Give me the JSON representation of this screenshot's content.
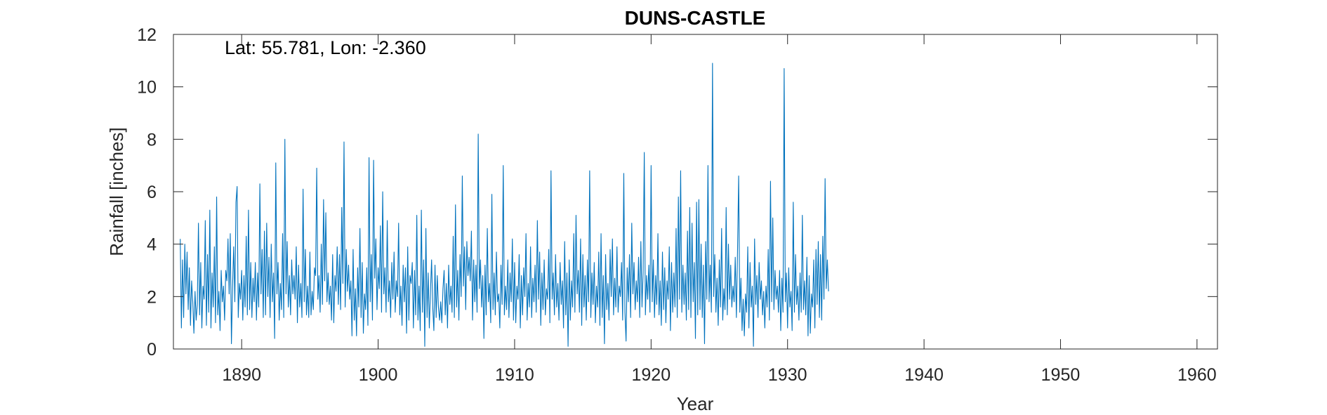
{
  "chart_data": {
    "type": "line",
    "title": "DUNS-CASTLE",
    "annotation": "Lat: 55.781, Lon: -2.360",
    "xlabel": "Year",
    "ylabel": "Rainfall [inches]",
    "xlim": [
      1885,
      1961.5
    ],
    "ylim": [
      0,
      12
    ],
    "xticks": [
      1890,
      1900,
      1910,
      1920,
      1930,
      1940,
      1950,
      1960
    ],
    "yticks": [
      0,
      2,
      4,
      6,
      8,
      10,
      12
    ],
    "grid": false,
    "line_color": "#0072BD",
    "series": [
      {
        "start_year": 1885.5,
        "step_years": 0.0833333,
        "values": [
          4.2,
          0.8,
          3.4,
          1.2,
          4.0,
          2.1,
          3.7,
          1.5,
          3.1,
          0.9,
          2.6,
          1.8,
          0.6,
          2.2,
          1.1,
          1.7,
          4.8,
          1.3,
          3.3,
          0.8,
          2.4,
          1.9,
          4.9,
          0.9,
          3.6,
          1.4,
          5.3,
          0.8,
          2.9,
          1.6,
          3.9,
          1.0,
          5.8,
          1.3,
          2.2,
          0.7,
          3.0,
          1.8,
          2.4,
          1.1,
          3.0,
          2.6,
          4.2,
          2.1,
          4.4,
          0.2,
          2.4,
          3.9,
          1.8,
          5.6,
          6.2,
          1.2,
          2.5,
          1.9,
          3.0,
          1.1,
          2.8,
          1.6,
          4.3,
          1.3,
          5.3,
          1.5,
          3.3,
          1.2,
          2.7,
          1.8,
          3.3,
          1.1,
          2.9,
          1.6,
          6.3,
          2.1,
          3.8,
          1.2,
          4.5,
          1.3,
          4.8,
          2.0,
          3.5,
          1.2,
          4.0,
          1.8,
          2.9,
          0.4,
          7.1,
          2.1,
          3.3,
          1.1,
          2.5,
          1.5,
          4.4,
          1.2,
          8.0,
          2.1,
          4.1,
          1.6,
          2.8,
          1.3,
          3.4,
          2.1,
          2.8,
          1.9,
          3.9,
          1.0,
          3.2,
          1.6,
          2.5,
          1.2,
          6.1,
          1.8,
          3.8,
          1.3,
          2.4,
          1.2,
          3.7,
          1.3,
          2.2,
          1.5,
          3.1,
          2.8,
          6.9,
          1.9,
          2.8,
          1.4,
          4.0,
          1.7,
          5.7,
          2.6,
          5.2,
          1.8,
          2.9,
          1.7,
          2.4,
          1.1,
          3.6,
          1.0,
          2.8,
          2.2,
          3.9,
          1.7,
          3.6,
          1.5,
          5.4,
          2.5,
          7.9,
          1.6,
          3.8,
          2.2,
          3.2,
          1.9,
          2.6,
          0.5,
          3.8,
          1.1,
          2.3,
          0.5,
          3.1,
          1.6,
          4.6,
          1.2,
          3.3,
          0.6,
          2.1,
          1.5,
          3.1,
          0.9,
          7.3,
          1.8,
          3.6,
          1.1,
          7.2,
          2.7,
          4.2,
          1.5,
          3.1,
          2.3,
          4.7,
          1.4,
          6.0,
          2.1,
          3.1,
          1.4,
          4.9,
          1.8,
          2.6,
          1.2,
          3.3,
          1.9,
          3.7,
          1.4,
          2.6,
          2.0,
          4.8,
          1.3,
          2.4,
          0.9,
          3.2,
          1.8,
          3.1,
          0.6,
          3.9,
          1.1,
          2.8,
          2.5,
          3.3,
          0.8,
          3.0,
          1.3,
          5.1,
          1.1,
          2.4,
          0.7,
          5.3,
          1.4,
          3.4,
          0.1,
          4.6,
          1.2,
          2.9,
          0.8,
          2.2,
          3.4,
          1.6,
          0.7,
          3.2,
          1.2,
          2.8,
          1.6,
          1.1,
          1.8,
          1.0,
          2.3,
          3.0,
          1.3,
          2.5,
          0.8,
          3.2,
          1.7,
          2.4,
          1.4,
          4.3,
          1.2,
          5.5,
          1.6,
          3.0,
          1.1,
          3.6,
          2.0,
          6.6,
          2.4,
          3.9,
          1.5,
          4.1,
          2.8,
          3.5,
          2.6,
          4.5,
          1.1,
          3.4,
          1.8,
          3.2,
          1.4,
          8.2,
          2.3,
          3.4,
          1.6,
          2.8,
          0.4,
          3.2,
          1.3,
          4.6,
          1.8,
          2.5,
          1.0,
          5.9,
          1.5,
          2.9,
          1.3,
          3.7,
          1.8,
          2.1,
          0.8,
          3.2,
          1.7,
          7.0,
          1.3,
          2.4,
          1.5,
          3.4,
          1.2,
          2.9,
          1.8,
          4.2,
          1.1,
          3.3,
          1.0,
          2.4,
          1.9,
          3.6,
          0.8,
          2.8,
          1.3,
          3.1,
          2.0,
          4.4,
          1.1,
          2.5,
          1.6,
          3.9,
          1.2,
          2.7,
          1.8,
          3.2,
          1.4,
          4.9,
          1.9,
          3.7,
          0.9,
          2.9,
          1.5,
          3.4,
          1.3,
          2.3,
          1.9,
          3.8,
          1.0,
          6.8,
          1.9,
          2.9,
          1.3,
          3.6,
          1.6,
          2.5,
          1.1,
          3.3,
          1.7,
          2.6,
          0.8,
          4.1,
          1.3,
          2.9,
          0.1,
          3.4,
          1.1,
          2.6,
          1.6,
          4.4,
          1.4,
          5.1,
          2.1,
          3.0,
          1.4,
          4.2,
          0.9,
          3.6,
          1.6,
          2.8,
          1.1,
          3.4,
          1.8,
          6.8,
          1.2,
          2.9,
          1.7,
          3.3,
          1.0,
          2.4,
          1.6,
          3.7,
          0.9,
          4.4,
          1.2,
          2.8,
          0.2,
          3.6,
          1.5,
          2.5,
          1.1,
          3.8,
          2.0,
          4.2,
          1.3,
          2.7,
          1.6,
          3.9,
          1.4,
          2.4,
          2.0,
          3.3,
          1.1,
          6.7,
          1.4,
          0.3,
          3.1,
          1.8,
          3.6,
          1.2,
          4.8,
          2.1,
          3.3,
          1.5,
          2.6,
          1.8,
          3.5,
          1.2,
          4.1,
          1.6,
          2.9,
          7.5,
          1.3,
          2.8,
          1.9,
          3.2,
          1.4,
          7.0,
          1.8,
          3.4,
          1.2,
          2.8,
          1.7,
          4.4,
          1.3,
          2.6,
          0.9,
          3.7,
          1.5,
          3.1,
          1.0,
          2.6,
          1.9,
          3.9,
          0.7,
          3.3,
          1.4,
          2.9,
          1.6,
          4.6,
          1.2,
          5.8,
          1.9,
          6.8,
          1.4,
          3.2,
          1.7,
          2.9,
          1.1,
          4.5,
          1.5,
          5.4,
          1.2,
          4.8,
          1.8,
          3.3,
          0.4,
          5.6,
          1.3,
          5.7,
          1.5,
          4.0,
          1.2,
          3.2,
          0.2,
          4.1,
          1.9,
          7.0,
          1.8,
          3.2,
          1.4,
          10.9,
          2.0,
          3.6,
          1.4,
          2.7,
          0.9,
          3.4,
          1.6,
          4.6,
          1.1,
          2.3,
          1.5,
          5.4,
          1.3,
          4.0,
          1.9,
          3.2,
          1.6,
          2.4,
          1.8,
          3.5,
          1.2,
          3.7,
          6.6,
          1.4,
          2.7,
          0.7,
          1.9,
          0.5,
          2.1,
          1.4,
          3.9,
          0.8,
          3.3,
          1.6,
          2.4,
          0.1,
          4.2,
          1.7,
          2.8,
          1.2,
          3.3,
          1.9,
          2.6,
          1.3,
          2.2,
          0.8,
          2.4,
          1.6,
          3.8,
          1.1,
          6.4,
          1.8,
          5.0,
          1.5,
          3.0,
          1.9,
          2.4,
          1.4,
          3.0,
          0.7,
          2.7,
          1.4,
          10.7,
          1.8,
          2.9,
          0.8,
          3.1,
          1.6,
          2.2,
          0.7,
          5.6,
          1.4,
          3.6,
          1.7,
          2.4,
          1.1,
          2.9,
          1.4,
          5.1,
          1.5,
          2.6,
          1.3,
          3.5,
          0.5,
          2.8,
          0.6,
          2.1,
          1.6,
          3.4,
          0.8,
          3.8,
          1.7,
          4.1,
          1.2,
          3.6,
          1.1,
          4.3,
          1.9,
          6.5,
          2.3,
          3.4,
          2.2
        ]
      }
    ]
  }
}
